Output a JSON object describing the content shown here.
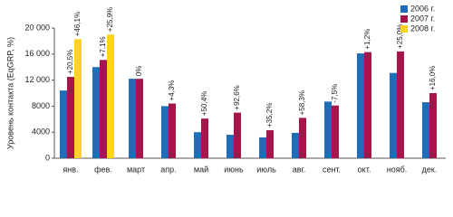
{
  "chart_data": {
    "type": "bar",
    "y_label": "Уровень контакта (EqGRP, %)",
    "categories": [
      "янв.",
      "фев.",
      "март",
      "апр.",
      "май",
      "июнь",
      "июль",
      "авг.",
      "сент.",
      "окт.",
      "нояб.",
      "дек."
    ],
    "series": [
      {
        "name": "2006 г.",
        "color": "#1e6db5",
        "values": [
          10400,
          14000,
          12200,
          8000,
          4000,
          3600,
          3200,
          3900,
          8700,
          16100,
          13100,
          8600
        ]
      },
      {
        "name": "2007 г.",
        "color": "#a3154b",
        "values": [
          12500,
          15100,
          12200,
          8400,
          6100,
          7000,
          4300,
          6200,
          8100,
          16300,
          16400,
          10000
        ],
        "growth_labels": [
          "+20,5%",
          "+7,1%",
          "0%",
          "+4,3%",
          "+50,4%",
          "+92,6%",
          "+35,2%",
          "+58,3%",
          "-7,5%",
          "+1,2%",
          "+25,0%",
          "+16,0%"
        ]
      },
      {
        "name": "2008 г.",
        "color": "#ffd320",
        "values": [
          18300,
          19000,
          null,
          null,
          null,
          null,
          null,
          null,
          null,
          null,
          null,
          null
        ],
        "growth_labels": [
          "+46,1%",
          "+25,9%",
          null,
          null,
          null,
          null,
          null,
          null,
          null,
          null,
          null,
          null
        ]
      }
    ],
    "ylim": [
      0,
      20000
    ],
    "yticks": [
      0,
      4000,
      8000,
      {
        "value": 12000,
        "label": "12 000"
      },
      {
        "value": 16000,
        "label": "16 000"
      },
      {
        "value": 20000,
        "label": "20 000"
      }
    ],
    "grid": false,
    "legend": "top-right"
  }
}
